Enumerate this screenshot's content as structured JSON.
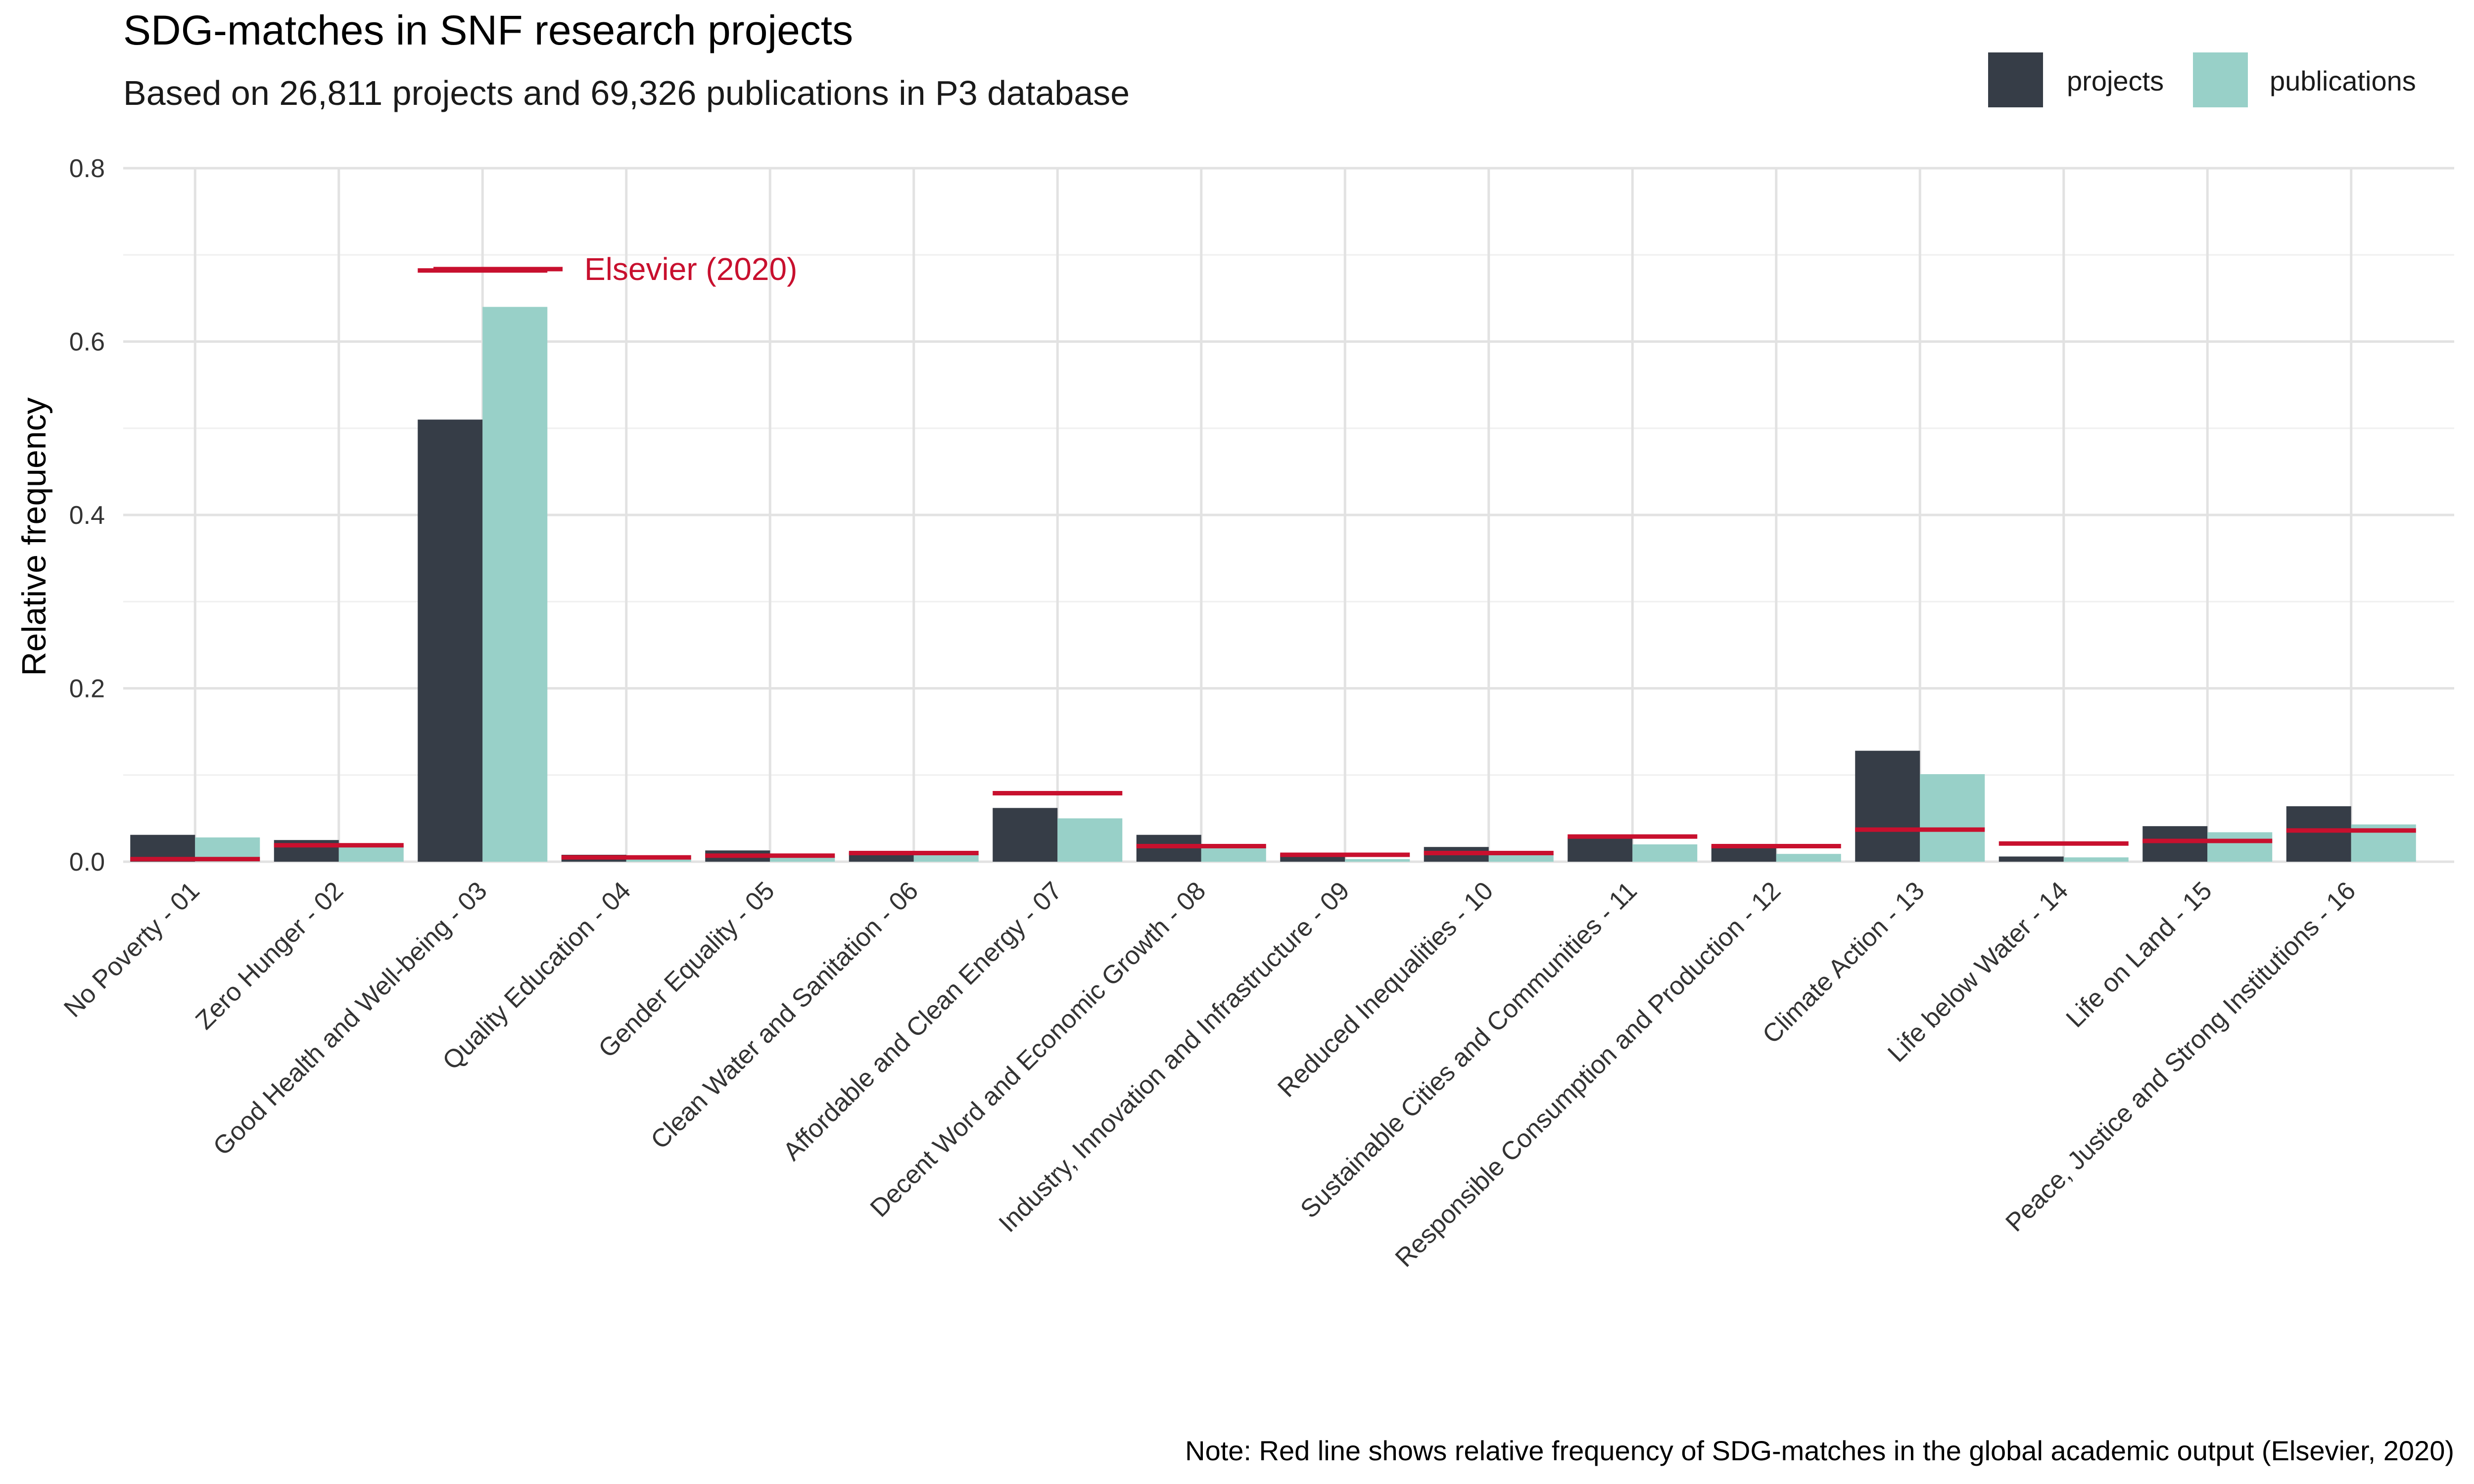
{
  "chart_data": {
    "type": "bar",
    "title": "SDG-matches in SNF research projects",
    "subtitle": "Based on 26,811 projects and 69,326 publications in P3 database",
    "xlabel": "",
    "ylabel": "Relative frequency",
    "ylim": [
      0,
      0.8
    ],
    "yticks": [
      "0.0",
      "0.2",
      "0.4",
      "0.6",
      "0.8"
    ],
    "ytick_values": [
      0,
      0.2,
      0.4,
      0.6,
      0.8
    ],
    "grid": true,
    "legend_position": "top-right",
    "categories": [
      "No Poverty - 01",
      "Zero Hunger - 02",
      "Good Health and Well-being - 03",
      "Quality Education - 04",
      "Gender Equality - 05",
      "Clean Water and Sanitation - 06",
      "Affordable and Clean Energy - 07",
      "Decent Word and Economic Growth - 08",
      "Industry, Innovation and Infrastructure - 09",
      "Reduced Inequalities - 10",
      "Sustainable Cities and Communities - 11",
      "Responsible Consumption and Production - 12",
      "Climate Action - 13",
      "Life below Water - 14",
      "Life on Land - 15",
      "Peace, Justice and Strong Institutions - 16"
    ],
    "series": [
      {
        "name": "projects",
        "color": "#363d47",
        "values": [
          0.031,
          0.025,
          0.51,
          0.008,
          0.013,
          0.011,
          0.062,
          0.031,
          0.009,
          0.017,
          0.028,
          0.019,
          0.128,
          0.006,
          0.041,
          0.064
        ]
      },
      {
        "name": "publications",
        "color": "#98d0c8",
        "values": [
          0.028,
          0.019,
          0.64,
          0.004,
          0.007,
          0.008,
          0.05,
          0.019,
          0.003,
          0.009,
          0.02,
          0.009,
          0.101,
          0.005,
          0.034,
          0.043
        ]
      }
    ],
    "reference": {
      "name": "Elsevier (2020)",
      "color": "#c8102e",
      "values": [
        0.003,
        0.019,
        0.682,
        0.005,
        0.007,
        0.01,
        0.079,
        0.018,
        0.008,
        0.01,
        0.029,
        0.018,
        0.037,
        0.021,
        0.024,
        0.036
      ]
    },
    "annotation": "Elsevier (2020)",
    "caption": "Note: Red line shows relative frequency of SDG-matches in the global academic output (Elsevier, 2020)"
  }
}
